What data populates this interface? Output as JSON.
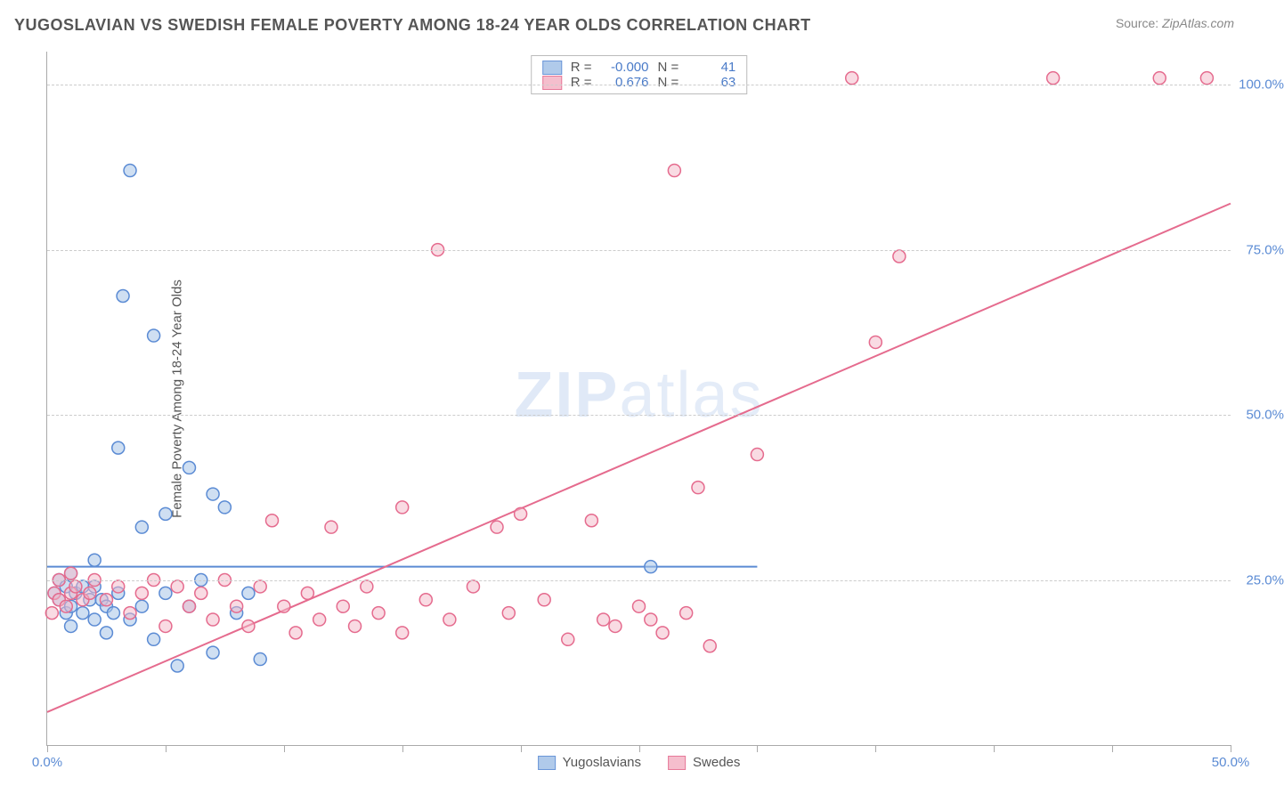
{
  "title": "YUGOSLAVIAN VS SWEDISH FEMALE POVERTY AMONG 18-24 YEAR OLDS CORRELATION CHART",
  "source_label": "Source: ",
  "source_value": "ZipAtlas.com",
  "y_axis_label": "Female Poverty Among 18-24 Year Olds",
  "watermark_bold": "ZIP",
  "watermark_thin": "atlas",
  "chart": {
    "type": "scatter",
    "xlim": [
      0,
      50
    ],
    "ylim": [
      0,
      105
    ],
    "x_ticks": [
      0,
      5,
      10,
      15,
      20,
      25,
      30,
      35,
      40,
      45,
      50
    ],
    "x_tick_labels": {
      "0": "0.0%",
      "50": "50.0%"
    },
    "y_grid": [
      25,
      50,
      75,
      100
    ],
    "y_tick_labels": {
      "25": "25.0%",
      "50": "50.0%",
      "75": "75.0%",
      "100": "100.0%"
    },
    "background_color": "#ffffff",
    "grid_color": "#cccccc",
    "axis_color": "#aaaaaa",
    "tick_label_color": "#5b8bd4",
    "marker_radius": 7,
    "marker_stroke_width": 1.5,
    "line_width": 2
  },
  "series": {
    "yugoslavians": {
      "label": "Yugoslavians",
      "fill_color": "#a8c5e8",
      "stroke_color": "#5b8bd4",
      "fill_opacity": 0.55,
      "R": "-0.000",
      "N": "41",
      "trend": {
        "x1": 0,
        "y1": 27,
        "x2": 30,
        "y2": 27
      },
      "points": [
        [
          0.3,
          23
        ],
        [
          0.5,
          22
        ],
        [
          0.5,
          25
        ],
        [
          0.8,
          20
        ],
        [
          0.8,
          24
        ],
        [
          1.0,
          18
        ],
        [
          1.0,
          21
        ],
        [
          1.0,
          26
        ],
        [
          1.2,
          23
        ],
        [
          1.5,
          20
        ],
        [
          1.5,
          24
        ],
        [
          1.8,
          22
        ],
        [
          2.0,
          19
        ],
        [
          2.0,
          24
        ],
        [
          2.0,
          28
        ],
        [
          2.3,
          22
        ],
        [
          2.5,
          17
        ],
        [
          2.5,
          21
        ],
        [
          2.8,
          20
        ],
        [
          3.0,
          23
        ],
        [
          3.0,
          45
        ],
        [
          3.2,
          68
        ],
        [
          3.5,
          87
        ],
        [
          3.5,
          19
        ],
        [
          4.0,
          21
        ],
        [
          4.0,
          33
        ],
        [
          4.5,
          62
        ],
        [
          4.5,
          16
        ],
        [
          5.0,
          23
        ],
        [
          5.0,
          35
        ],
        [
          5.5,
          12
        ],
        [
          6.0,
          42
        ],
        [
          6.0,
          21
        ],
        [
          6.5,
          25
        ],
        [
          7.0,
          38
        ],
        [
          7.0,
          14
        ],
        [
          7.5,
          36
        ],
        [
          8.0,
          20
        ],
        [
          8.5,
          23
        ],
        [
          9.0,
          13
        ],
        [
          25.5,
          27
        ]
      ]
    },
    "swedes": {
      "label": "Swedes",
      "fill_color": "#f4b8c8",
      "stroke_color": "#e56b8e",
      "fill_opacity": 0.5,
      "R": "0.676",
      "N": "63",
      "trend": {
        "x1": 0,
        "y1": 5,
        "x2": 50,
        "y2": 82
      },
      "points": [
        [
          0.2,
          20
        ],
        [
          0.3,
          23
        ],
        [
          0.5,
          22
        ],
        [
          0.5,
          25
        ],
        [
          0.8,
          21
        ],
        [
          1.0,
          23
        ],
        [
          1.0,
          26
        ],
        [
          1.2,
          24
        ],
        [
          1.5,
          22
        ],
        [
          1.8,
          23
        ],
        [
          2.0,
          25
        ],
        [
          2.5,
          22
        ],
        [
          3.0,
          24
        ],
        [
          3.5,
          20
        ],
        [
          4.0,
          23
        ],
        [
          4.5,
          25
        ],
        [
          5.0,
          18
        ],
        [
          5.5,
          24
        ],
        [
          6.0,
          21
        ],
        [
          6.5,
          23
        ],
        [
          7.0,
          19
        ],
        [
          7.5,
          25
        ],
        [
          8.0,
          21
        ],
        [
          8.5,
          18
        ],
        [
          9.0,
          24
        ],
        [
          9.5,
          34
        ],
        [
          10.0,
          21
        ],
        [
          10.5,
          17
        ],
        [
          11.0,
          23
        ],
        [
          11.5,
          19
        ],
        [
          12.0,
          33
        ],
        [
          12.5,
          21
        ],
        [
          13.0,
          18
        ],
        [
          13.5,
          24
        ],
        [
          14.0,
          20
        ],
        [
          15.0,
          36
        ],
        [
          15.0,
          17
        ],
        [
          16.0,
          22
        ],
        [
          16.5,
          75
        ],
        [
          17.0,
          19
        ],
        [
          18.0,
          24
        ],
        [
          19.0,
          33
        ],
        [
          19.5,
          20
        ],
        [
          20.0,
          35
        ],
        [
          21.0,
          22
        ],
        [
          22.0,
          16
        ],
        [
          23.0,
          34
        ],
        [
          23.5,
          19
        ],
        [
          24.0,
          18
        ],
        [
          25.0,
          21
        ],
        [
          25.5,
          19
        ],
        [
          26.0,
          17
        ],
        [
          26.5,
          87
        ],
        [
          27.0,
          20
        ],
        [
          27.5,
          39
        ],
        [
          28.0,
          15
        ],
        [
          30.0,
          44
        ],
        [
          34.0,
          101
        ],
        [
          35.0,
          61
        ],
        [
          36.0,
          74
        ],
        [
          42.5,
          101
        ],
        [
          47.0,
          101
        ],
        [
          49.0,
          101
        ]
      ]
    }
  },
  "legend_top": {
    "R_label": "R =",
    "N_label": "N ="
  }
}
